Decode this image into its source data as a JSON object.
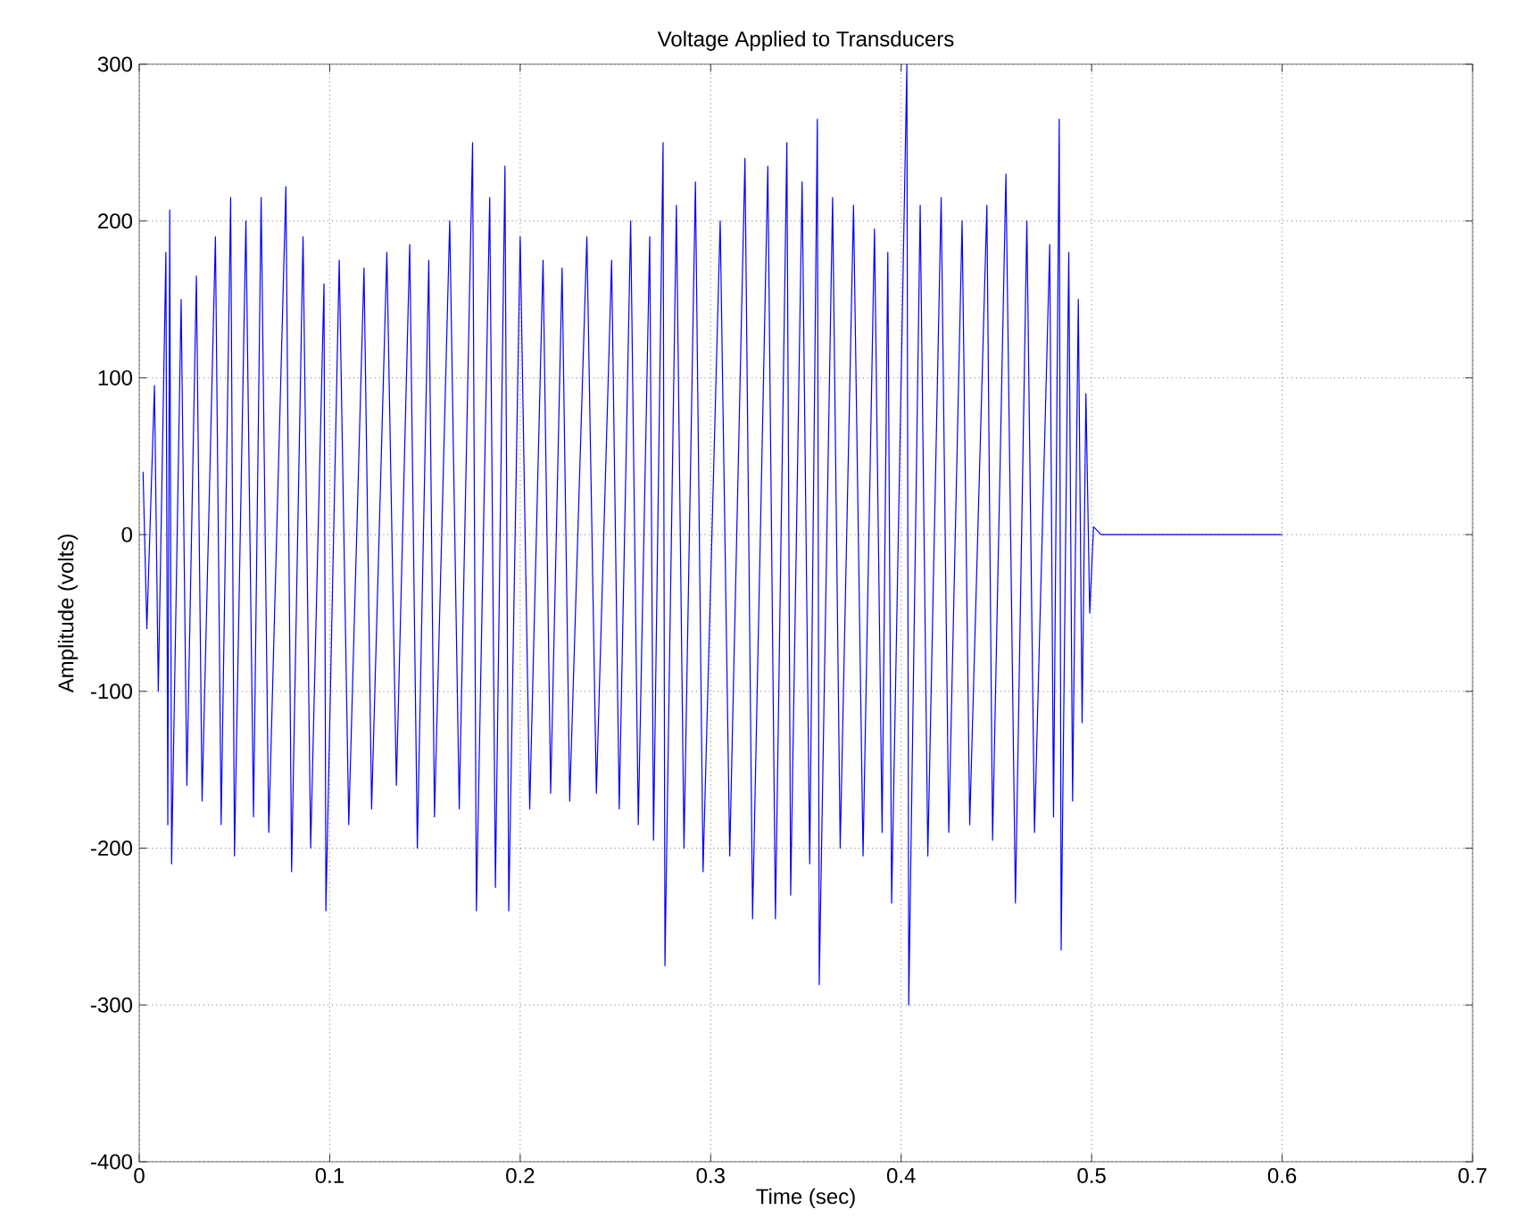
{
  "chart_data": {
    "type": "line",
    "title": "Voltage Applied to Transducers",
    "xlabel": "Time (sec)",
    "ylabel": "Amplitude (volts)",
    "xlim": [
      0,
      0.7
    ],
    "ylim": [
      -400,
      300
    ],
    "xticks": [
      0,
      0.1,
      0.2,
      0.3,
      0.4,
      0.5,
      0.6,
      0.7
    ],
    "yticks": [
      -400,
      -300,
      -200,
      -100,
      0,
      100,
      200,
      300
    ],
    "grid": true,
    "series": [
      {
        "color": "#0000ff",
        "x": [
          0.002,
          0.004,
          0.008,
          0.01,
          0.014,
          0.015,
          0.016,
          0.017,
          0.022,
          0.025,
          0.03,
          0.033,
          0.04,
          0.043,
          0.048,
          0.05,
          0.056,
          0.06,
          0.064,
          0.068,
          0.077,
          0.08,
          0.086,
          0.09,
          0.097,
          0.098,
          0.105,
          0.11,
          0.118,
          0.122,
          0.13,
          0.135,
          0.142,
          0.146,
          0.152,
          0.155,
          0.163,
          0.168,
          0.175,
          0.177,
          0.184,
          0.187,
          0.192,
          0.194,
          0.2,
          0.205,
          0.212,
          0.216,
          0.222,
          0.226,
          0.235,
          0.24,
          0.248,
          0.252,
          0.258,
          0.262,
          0.268,
          0.27,
          0.275,
          0.276,
          0.282,
          0.286,
          0.292,
          0.296,
          0.305,
          0.31,
          0.318,
          0.322,
          0.33,
          0.334,
          0.34,
          0.342,
          0.348,
          0.352,
          0.356,
          0.357,
          0.364,
          0.368,
          0.375,
          0.38,
          0.386,
          0.39,
          0.393,
          0.395,
          0.403,
          0.404,
          0.41,
          0.414,
          0.421,
          0.425,
          0.432,
          0.436,
          0.445,
          0.448,
          0.455,
          0.46,
          0.466,
          0.47,
          0.478,
          0.48,
          0.483,
          0.484,
          0.488,
          0.49,
          0.493,
          0.495,
          0.497,
          0.499,
          0.501,
          0.505,
          0.6
        ],
        "values": [
          40,
          -60,
          95,
          -100,
          180,
          -185,
          207,
          -210,
          150,
          -160,
          165,
          -170,
          190,
          -185,
          215,
          -205,
          200,
          -180,
          215,
          -190,
          222,
          -215,
          190,
          -200,
          160,
          -240,
          175,
          -185,
          170,
          -175,
          180,
          -160,
          185,
          -200,
          175,
          -180,
          200,
          -175,
          250,
          -240,
          215,
          -225,
          235,
          -240,
          190,
          -175,
          175,
          -165,
          170,
          -170,
          190,
          -165,
          175,
          -175,
          200,
          -185,
          190,
          -195,
          250,
          -275,
          210,
          -200,
          225,
          -215,
          200,
          -205,
          240,
          -245,
          235,
          -245,
          250,
          -230,
          225,
          -210,
          265,
          -287,
          215,
          -200,
          210,
          -205,
          195,
          -190,
          180,
          -235,
          300,
          -300,
          210,
          -205,
          215,
          -190,
          200,
          -185,
          210,
          -195,
          230,
          -235,
          200,
          -190,
          185,
          -180,
          265,
          -265,
          180,
          -170,
          150,
          -120,
          90,
          -50,
          5,
          0,
          0
        ]
      }
    ]
  }
}
